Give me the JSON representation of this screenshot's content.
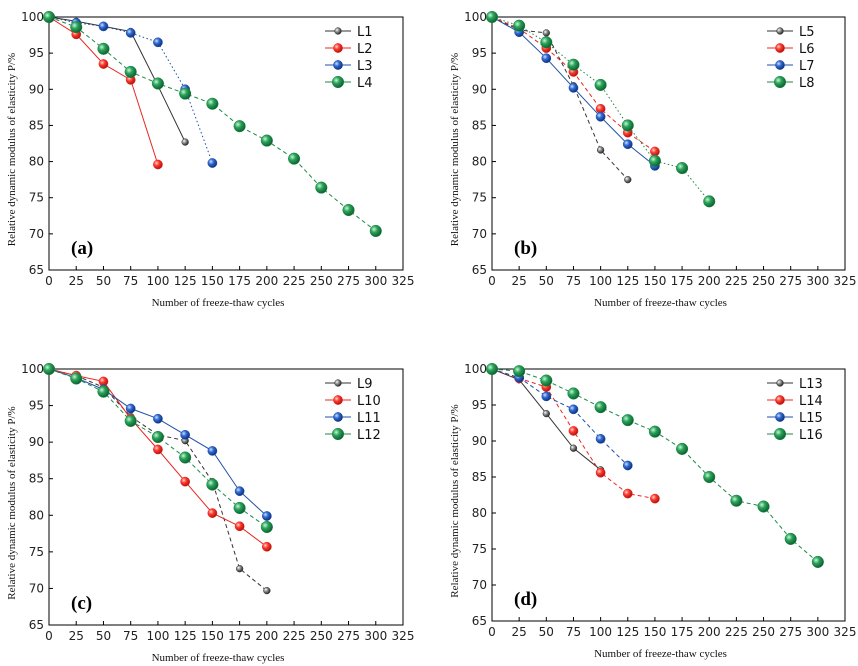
{
  "chart_data": [
    {
      "type": "line",
      "panel_label": "(a)",
      "xlabel": "Number of freeze-thaw cycles",
      "ylabel": "Relative dynamic modulus of elasticity P/%",
      "xlim": [
        0,
        325
      ],
      "ylim": [
        65,
        100
      ],
      "xticks": [
        0,
        25,
        50,
        75,
        100,
        125,
        150,
        175,
        200,
        225,
        250,
        275,
        300,
        325
      ],
      "yticks": [
        65,
        70,
        75,
        80,
        85,
        90,
        95,
        100
      ],
      "legend_position": "top-right",
      "series": [
        {
          "name": "L1",
          "color": "#333333",
          "marker": "small",
          "dash": "solid",
          "x": [
            0,
            25,
            50,
            75,
            100,
            125
          ],
          "y": [
            100,
            99.4,
            98.7,
            98.0,
            90.5,
            82.7
          ]
        },
        {
          "name": "L2",
          "color": "#e8271f",
          "marker": "medium",
          "dash": "solid",
          "x": [
            0,
            25,
            50,
            75,
            100
          ],
          "y": [
            100,
            97.6,
            93.5,
            91.3,
            79.6
          ]
        },
        {
          "name": "L3",
          "color": "#1e4fa8",
          "marker": "medium",
          "dash": "dotted",
          "x": [
            0,
            25,
            50,
            75,
            100,
            125,
            150
          ],
          "y": [
            100,
            99.2,
            98.7,
            97.8,
            96.5,
            90.0,
            79.8
          ]
        },
        {
          "name": "L4",
          "color": "#1a8a46",
          "marker": "large",
          "dash": "dashed",
          "x": [
            0,
            25,
            50,
            75,
            100,
            125,
            150,
            175,
            200,
            225,
            250,
            275,
            300
          ],
          "y": [
            100,
            98.6,
            95.6,
            92.4,
            90.8,
            89.4,
            88.0,
            84.9,
            82.9,
            80.4,
            76.4,
            73.3,
            70.4
          ]
        }
      ]
    },
    {
      "type": "line",
      "panel_label": "(b)",
      "xlabel": "Number of freeze-thaw cycles",
      "ylabel": "Relative dynamic modulus of elasticity P/%",
      "xlim": [
        0,
        325
      ],
      "ylim": [
        65,
        100
      ],
      "xticks": [
        0,
        25,
        50,
        75,
        100,
        125,
        150,
        175,
        200,
        225,
        250,
        275,
        300,
        325
      ],
      "yticks": [
        65,
        70,
        75,
        80,
        85,
        90,
        95,
        100
      ],
      "legend_position": "top-right",
      "series": [
        {
          "name": "L5",
          "color": "#333333",
          "marker": "small",
          "dash": "dashed",
          "x": [
            0,
            25,
            50,
            75,
            100,
            125
          ],
          "y": [
            100,
            98.2,
            97.8,
            90.5,
            81.6,
            77.5
          ]
        },
        {
          "name": "L6",
          "color": "#e8271f",
          "marker": "medium",
          "dash": "dashed",
          "x": [
            0,
            25,
            50,
            75,
            100,
            125,
            150
          ],
          "y": [
            100,
            98.4,
            95.7,
            92.4,
            87.3,
            84.0,
            81.4
          ]
        },
        {
          "name": "L7",
          "color": "#1e4fa8",
          "marker": "medium",
          "dash": "solid",
          "x": [
            0,
            25,
            50,
            75,
            100,
            125,
            150
          ],
          "y": [
            100,
            97.9,
            94.3,
            90.2,
            86.2,
            82.4,
            79.4
          ]
        },
        {
          "name": "L8",
          "color": "#1a8a46",
          "marker": "large",
          "dash": "dotted",
          "x": [
            0,
            25,
            50,
            75,
            100,
            125,
            150,
            175,
            200
          ],
          "y": [
            100,
            98.8,
            96.5,
            93.4,
            90.6,
            85.0,
            80.1,
            79.1,
            74.5
          ]
        }
      ]
    },
    {
      "type": "line",
      "panel_label": "(c)",
      "xlabel": "Number of freeze-thaw cycles",
      "ylabel": "Relative dynamic modulus of elasticity P/%",
      "xlim": [
        0,
        325
      ],
      "ylim": [
        65,
        100
      ],
      "xticks": [
        0,
        25,
        50,
        75,
        100,
        125,
        150,
        175,
        200,
        225,
        250,
        275,
        300,
        325
      ],
      "yticks": [
        65,
        70,
        75,
        80,
        85,
        90,
        95,
        100
      ],
      "legend_position": "top-right",
      "series": [
        {
          "name": "L9",
          "color": "#333333",
          "marker": "small",
          "dash": "dashed",
          "x": [
            0,
            25,
            50,
            75,
            100,
            125,
            150,
            175,
            200
          ],
          "y": [
            100,
            99.1,
            97.5,
            93.5,
            91.0,
            90.2,
            84.6,
            72.7,
            69.7
          ]
        },
        {
          "name": "L10",
          "color": "#e8271f",
          "marker": "medium",
          "dash": "solid",
          "x": [
            0,
            25,
            50,
            75,
            100,
            125,
            150,
            175,
            200
          ],
          "y": [
            100,
            99.1,
            98.3,
            93.2,
            89.0,
            84.6,
            80.3,
            78.5,
            75.7
          ]
        },
        {
          "name": "L11",
          "color": "#1e4fa8",
          "marker": "medium",
          "dash": "solid",
          "x": [
            0,
            25,
            50,
            75,
            100,
            125,
            150,
            175,
            200
          ],
          "y": [
            100,
            98.8,
            97.2,
            94.6,
            93.2,
            91.0,
            88.8,
            83.3,
            79.9
          ]
        },
        {
          "name": "L12",
          "color": "#1a8a46",
          "marker": "large",
          "dash": "dashed",
          "x": [
            0,
            25,
            50,
            75,
            100,
            125,
            150,
            175,
            200
          ],
          "y": [
            100,
            98.7,
            96.9,
            92.9,
            90.7,
            87.9,
            84.2,
            81.0,
            78.4
          ]
        }
      ]
    },
    {
      "type": "line",
      "panel_label": "(d)",
      "xlabel": "Number of freeze-thaw cycles",
      "ylabel": "Relative dynamic modulus of elasticity P/%",
      "xlim": [
        0,
        325
      ],
      "ylim": [
        65,
        100
      ],
      "xticks": [
        0,
        25,
        50,
        75,
        100,
        125,
        150,
        175,
        200,
        225,
        250,
        275,
        300,
        325
      ],
      "yticks": [
        65,
        70,
        75,
        80,
        85,
        90,
        95,
        100
      ],
      "legend_position": "top-right",
      "series": [
        {
          "name": "L13",
          "color": "#333333",
          "marker": "small",
          "dash": "solid",
          "x": [
            0,
            25,
            50,
            75,
            100
          ],
          "y": [
            100,
            98.5,
            93.8,
            89.0,
            86.0
          ]
        },
        {
          "name": "L14",
          "color": "#e8271f",
          "marker": "medium",
          "dash": "dashed",
          "x": [
            0,
            25,
            50,
            75,
            100,
            125,
            150
          ],
          "y": [
            100,
            98.7,
            97.5,
            91.4,
            85.6,
            82.7,
            82.0
          ]
        },
        {
          "name": "L15",
          "color": "#1e4fa8",
          "marker": "medium",
          "dash": "dashed",
          "x": [
            0,
            25,
            50,
            75,
            100,
            125
          ],
          "y": [
            100,
            98.8,
            96.2,
            94.4,
            90.3,
            86.6
          ]
        },
        {
          "name": "L16",
          "color": "#1a8a46",
          "marker": "large",
          "dash": "dashed",
          "x": [
            0,
            25,
            50,
            75,
            100,
            125,
            150,
            175,
            200,
            225,
            250,
            275,
            300
          ],
          "y": [
            100,
            99.7,
            98.4,
            96.6,
            94.7,
            92.9,
            91.3,
            88.9,
            85.0,
            81.7,
            80.9,
            76.4,
            73.2
          ]
        }
      ]
    }
  ]
}
